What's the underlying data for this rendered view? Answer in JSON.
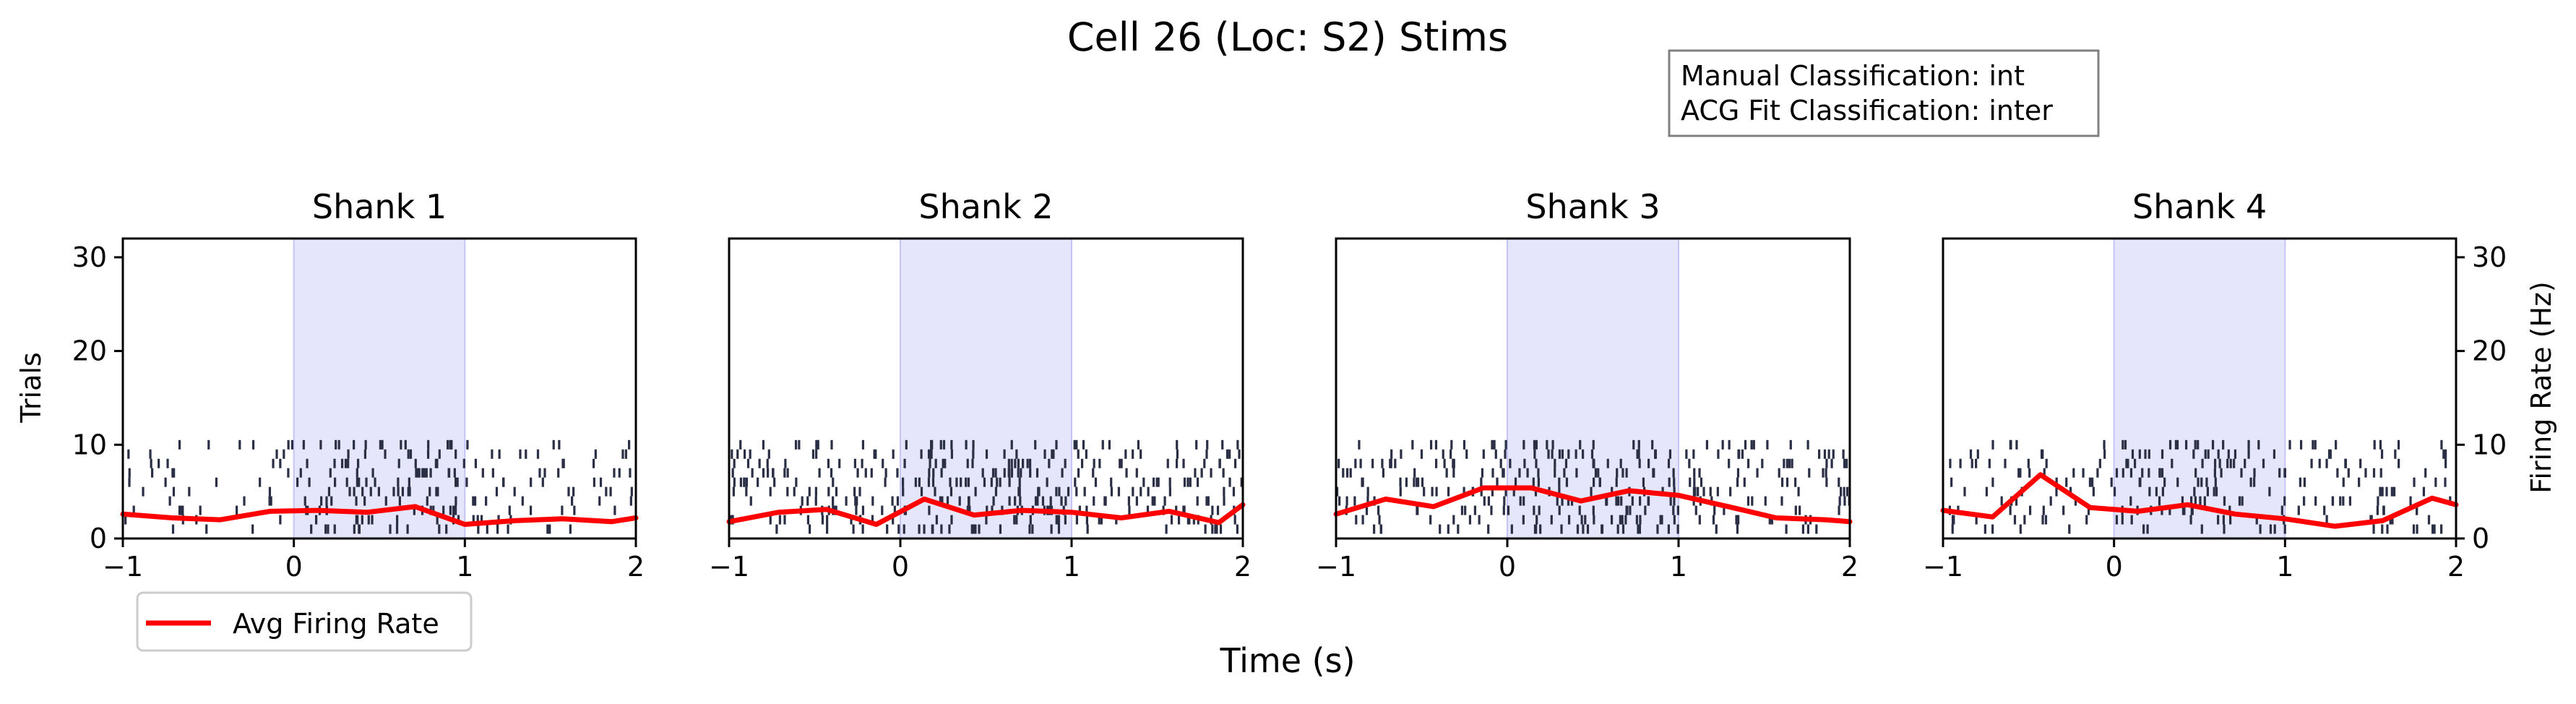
{
  "chart_data": {
    "type": "raster_psth",
    "title": "Cell 26 (Loc: S2) Stims",
    "classification": {
      "manual": "Manual Classification: int",
      "acg_fit": "ACG Fit Classification: inter"
    },
    "xlabel": "Time (s)",
    "ylabel_left": "Trials",
    "ylabel_right": "Firing Rate (Hz)",
    "xlim": [
      -1,
      2
    ],
    "ylim": [
      0,
      32
    ],
    "x_ticks": [
      -1,
      0,
      1,
      2
    ],
    "x_tick_labels": [
      "−1",
      "0",
      "1",
      "2"
    ],
    "y_ticks": [
      0,
      10,
      20,
      30
    ],
    "y_tick_labels": [
      "0",
      "10",
      "20",
      "30"
    ],
    "stim_window": [
      0,
      1
    ],
    "n_trials": 10,
    "legend": {
      "label": "Avg Firing Rate",
      "position": "lower-left"
    },
    "colors": {
      "raster": "#2b2f45",
      "rate": "#ff0000",
      "stim": "#e5e5fc",
      "stim_edge": "#c5c5f5"
    },
    "panels": [
      {
        "title": "Shank 1",
        "rate": {
          "x": [
            -1,
            -0.71,
            -0.43,
            -0.14,
            0.14,
            0.43,
            0.71,
            1.0,
            1.29,
            1.57,
            1.86,
            2.0
          ],
          "y": [
            2.6,
            2.2,
            2.0,
            2.9,
            3.0,
            2.8,
            3.4,
            1.5,
            1.9,
            2.1,
            1.8,
            2.2
          ]
        },
        "raster_density": {
          "pre": 10,
          "stim": 22,
          "post": 12
        }
      },
      {
        "title": "Shank 2",
        "rate": {
          "x": [
            -1,
            -0.71,
            -0.43,
            -0.14,
            0.14,
            0.43,
            0.71,
            1.0,
            1.29,
            1.57,
            1.86,
            2.0
          ],
          "y": [
            1.8,
            2.8,
            3.1,
            1.5,
            4.2,
            2.5,
            3.0,
            2.8,
            2.2,
            2.9,
            1.7,
            3.6
          ]
        },
        "raster_density": {
          "pre": 22,
          "stim": 26,
          "post": 22
        }
      },
      {
        "title": "Shank 3",
        "rate": {
          "x": [
            -1,
            -0.71,
            -0.43,
            -0.14,
            0.14,
            0.43,
            0.71,
            1.0,
            1.29,
            1.57,
            1.86,
            2.0
          ],
          "y": [
            2.6,
            4.2,
            3.4,
            5.4,
            5.4,
            4.0,
            5.1,
            4.6,
            3.4,
            2.2,
            2.0,
            1.8
          ]
        },
        "raster_density": {
          "pre": 20,
          "stim": 28,
          "post": 18
        }
      },
      {
        "title": "Shank 4",
        "rate": {
          "x": [
            -1,
            -0.71,
            -0.43,
            -0.14,
            0.14,
            0.43,
            0.71,
            1.0,
            1.29,
            1.57,
            1.86,
            2.0
          ],
          "y": [
            3.0,
            2.3,
            6.8,
            3.3,
            2.9,
            3.6,
            2.6,
            2.1,
            1.3,
            1.9,
            4.3,
            3.6
          ]
        },
        "raster_density": {
          "pre": 14,
          "stim": 22,
          "post": 16
        }
      }
    ]
  }
}
